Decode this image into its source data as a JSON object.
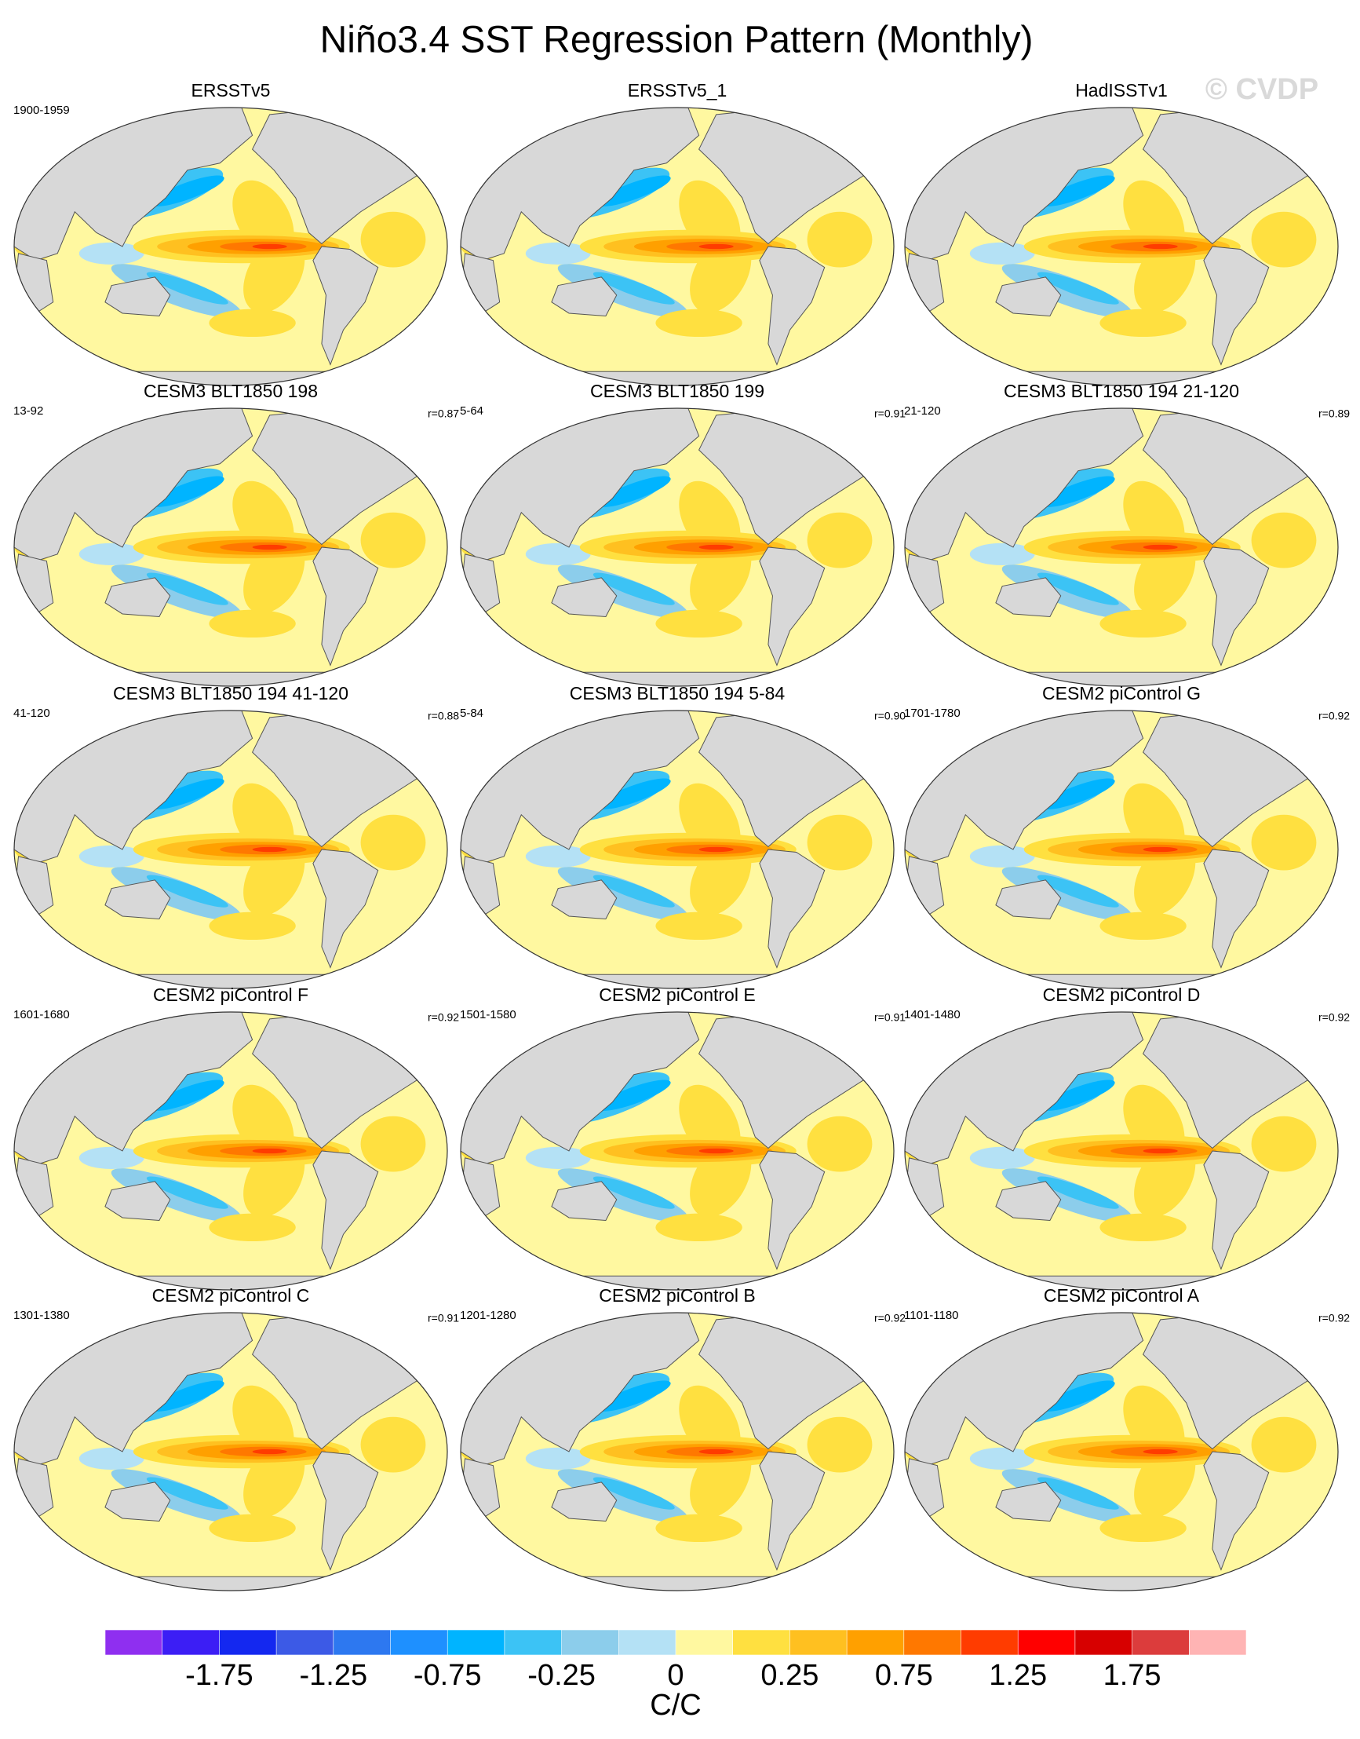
{
  "chart_data": {
    "type": "contour-map-panels",
    "title": "Niño3.4 SST Regression Pattern (Monthly)",
    "watermark": "© CVDP",
    "panels": [
      {
        "title": "ERSSTv5",
        "period": "1900-1959"
      },
      {
        "title": "ERSSTv5_1"
      },
      {
        "title": "HadISSTv1"
      },
      {
        "title": "CESM3 BLT1850 198",
        "period": "13-92",
        "r": "r=0.87"
      },
      {
        "title": "CESM3 BLT1850 199",
        "period": "5-64",
        "r": "r=0.91"
      },
      {
        "title": "CESM3 BLT1850 194 21-120",
        "period": "21-120",
        "r": "r=0.89"
      },
      {
        "title": "CESM3 BLT1850 194 41-120",
        "period": "41-120",
        "r": "r=0.88"
      },
      {
        "title": "CESM3 BLT1850 194 5-84",
        "period": "5-84",
        "r": "r=0.90"
      },
      {
        "title": "CESM2 piControl G",
        "period": "1701-1780",
        "r": "r=0.92"
      },
      {
        "title": "CESM2 piControl F",
        "period": "1601-1680",
        "r": "r=0.92"
      },
      {
        "title": "CESM2 piControl E",
        "period": "1501-1580",
        "r": "r=0.91"
      },
      {
        "title": "CESM2 piControl D",
        "period": "1401-1480",
        "r": "r=0.92"
      },
      {
        "title": "CESM2 piControl C",
        "period": "1301-1380",
        "r": "r=0.91"
      },
      {
        "title": "CESM2 piControl B",
        "period": "1201-1280",
        "r": "r=0.92"
      },
      {
        "title": "CESM2 piControl A",
        "period": "1101-1180",
        "r": "r=0.92"
      }
    ],
    "colorbar": {
      "label": "C/C",
      "colors": [
        "#8F2FF0",
        "#3C1EF5",
        "#1428F0",
        "#3C5AE6",
        "#2D78F0",
        "#1E90FF",
        "#00B4FF",
        "#3CC3F5",
        "#8CCDEB",
        "#B4E1F5",
        "#FFF8A0",
        "#FFE040",
        "#FFC020",
        "#FFA000",
        "#FF7800",
        "#FF3C00",
        "#FF0000",
        "#D70000",
        "#DC3C3C",
        "#FFB4B4"
      ],
      "levels": [
        -2,
        -1.75,
        -1.5,
        -1.25,
        -1,
        -0.75,
        -0.5,
        -0.25,
        -0.1,
        0,
        0.1,
        0.25,
        0.5,
        0.75,
        1,
        1.25,
        1.5,
        1.75,
        2
      ],
      "ticks": [
        -1.75,
        -1.25,
        -0.75,
        -0.25,
        0,
        0.25,
        0.75,
        1.25,
        1.75
      ]
    }
  }
}
